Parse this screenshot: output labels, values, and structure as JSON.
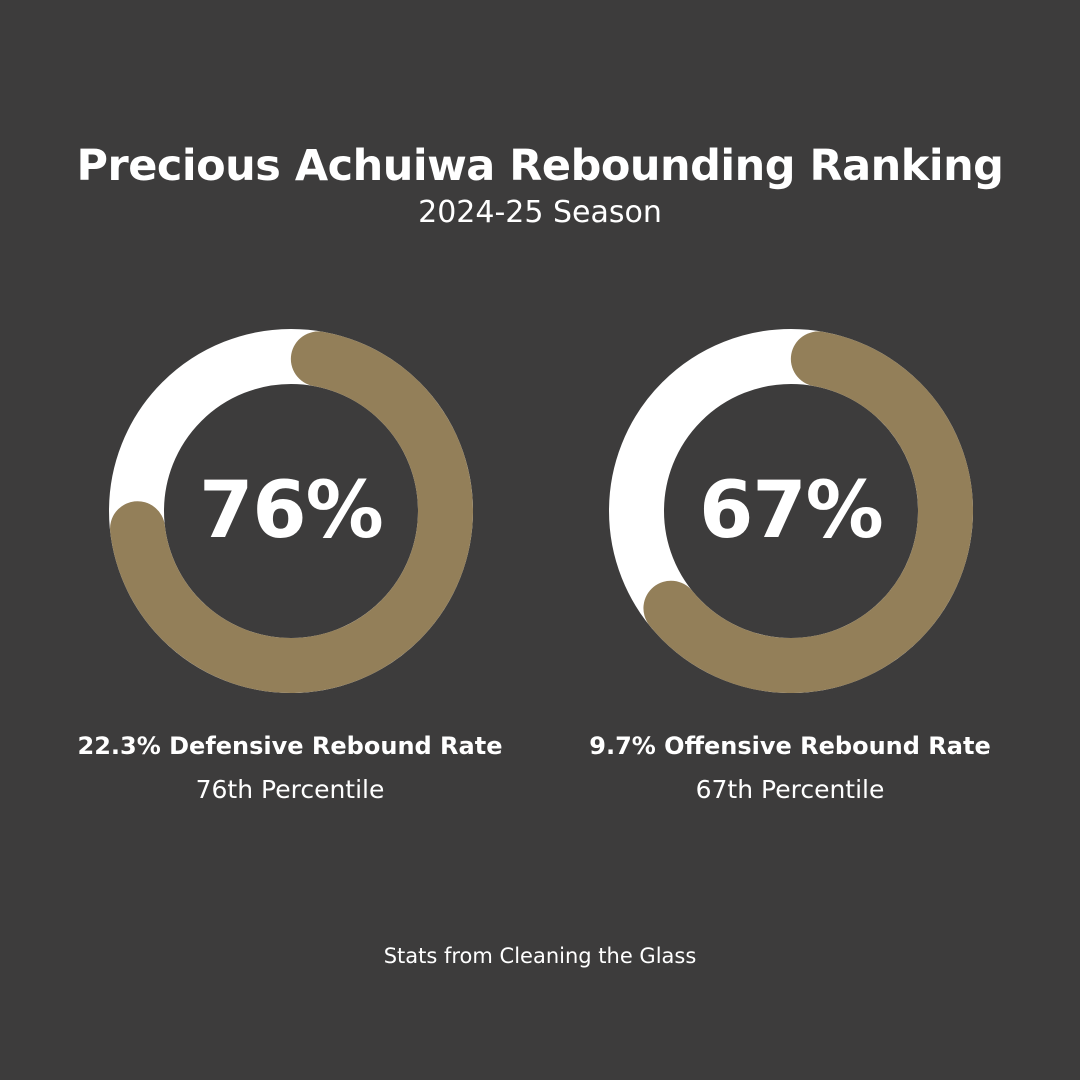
{
  "title": "Precious Achuiwa Rebounding Ranking",
  "subtitle": "2024-25 Season",
  "colors": {
    "background": "#3d3c3c",
    "track": "#ffffff",
    "fill": "#937f59",
    "text": "#ffffff"
  },
  "gauges": [
    {
      "value_label": "76%",
      "label": "22.3% Defensive Rebound Rate",
      "sublabel": "76th Percentile"
    },
    {
      "value_label": "67%",
      "label": "9.7% Offensive Rebound Rate",
      "sublabel": "67th Percentile"
    }
  ],
  "source": "Stats from Cleaning the Glass",
  "chart_data": [
    {
      "type": "pie",
      "style": "donut",
      "categories": [
        "Defensive Rebound Rate"
      ],
      "values": [
        76
      ],
      "max": 100,
      "direction": "clockwise-from-top"
    },
    {
      "type": "pie",
      "style": "donut",
      "categories": [
        "Offensive Rebound Rate"
      ],
      "values": [
        67
      ],
      "max": 100,
      "direction": "clockwise-from-top"
    }
  ]
}
